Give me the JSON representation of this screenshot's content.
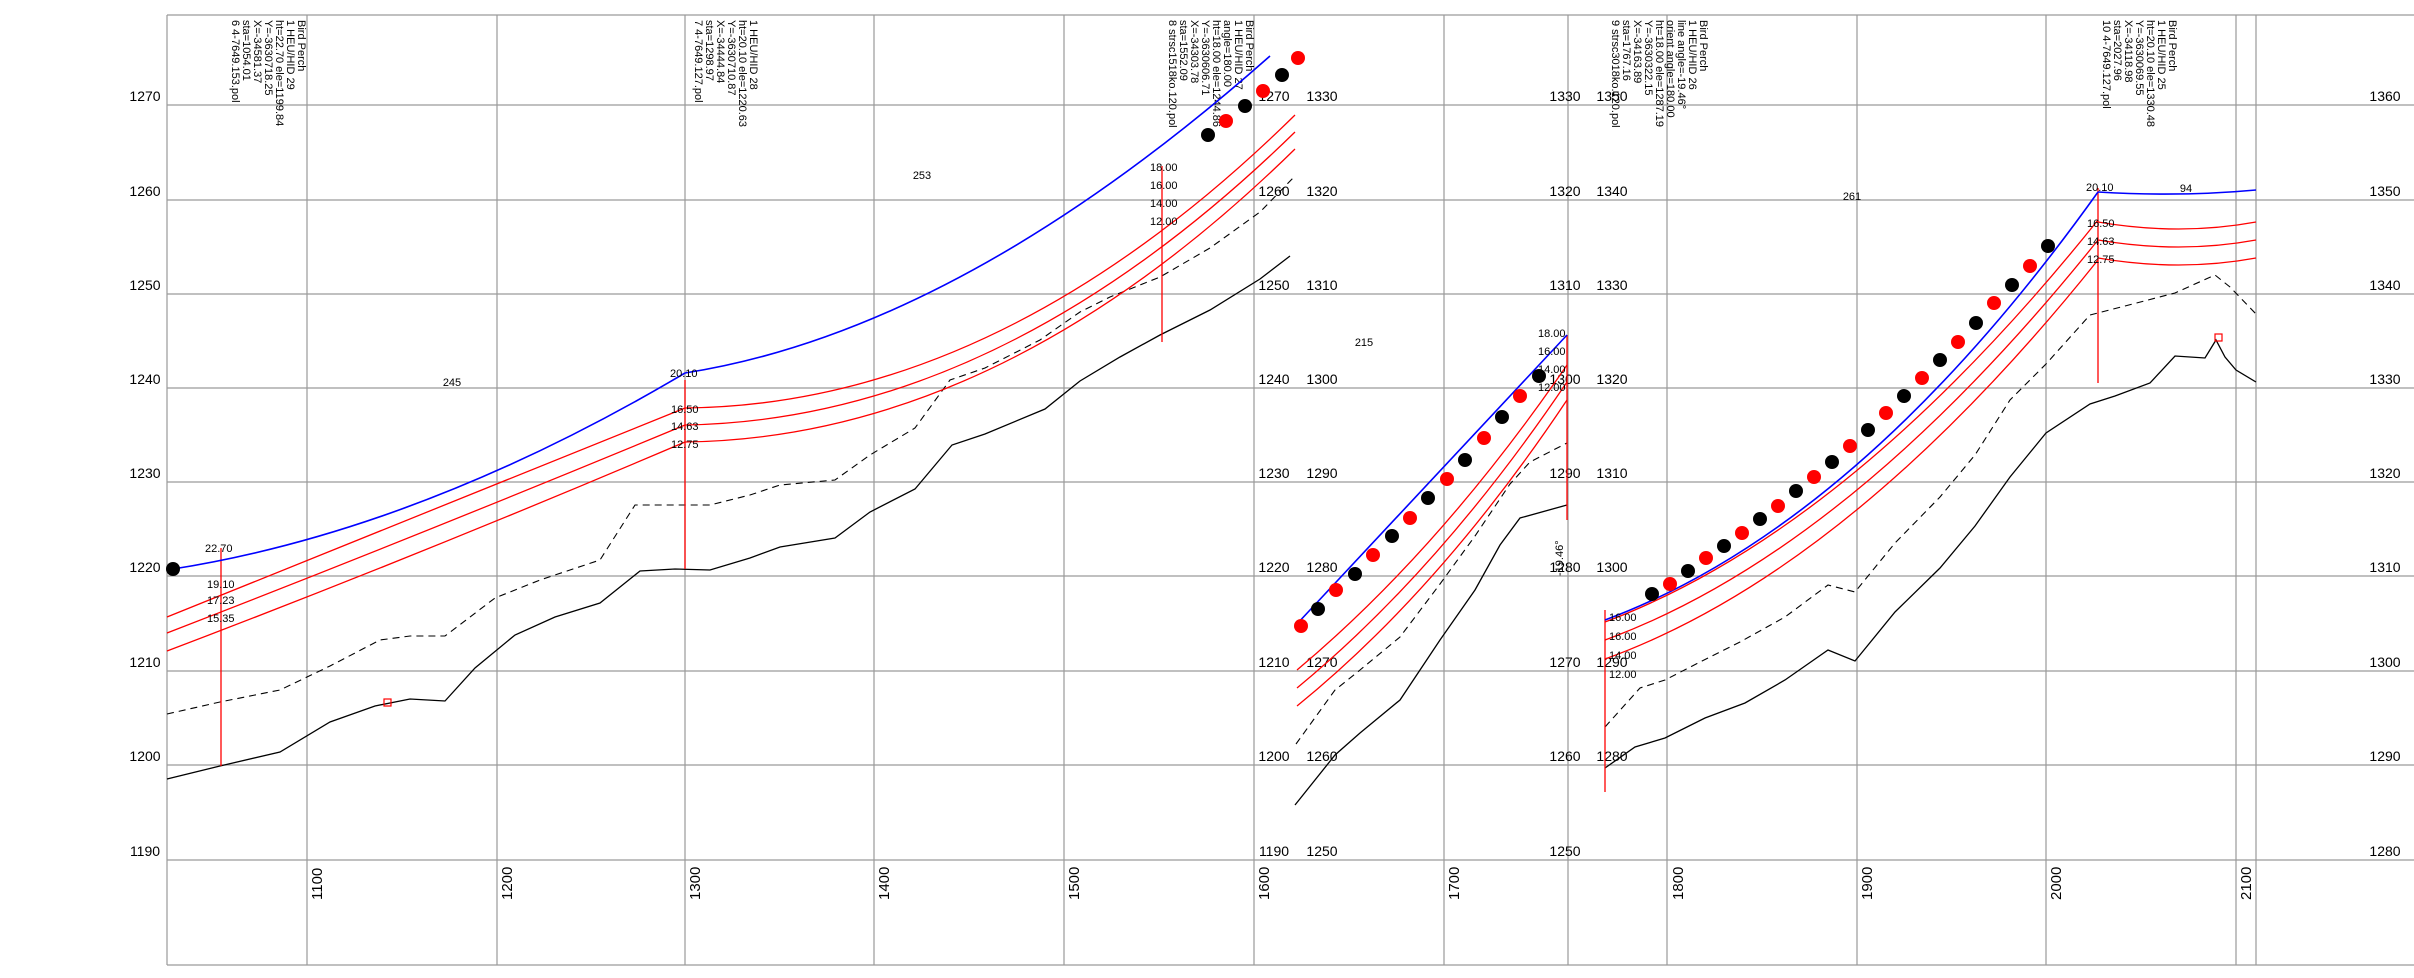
{
  "colors": {
    "grid": "#9a9a9a",
    "conductor": "#0000ff",
    "clearance": "#ff0000",
    "ground": "#000000",
    "buffer": "#000000",
    "marker_red": "#ff0000",
    "marker_black": "#000000"
  },
  "axes": {
    "left_elev_labels": [
      "1270",
      "1260",
      "1250",
      "1240",
      "1230",
      "1220",
      "1210",
      "1200",
      "1190"
    ],
    "right_elev_labels": [
      "1360",
      "1350",
      "1340",
      "1330",
      "1320",
      "1310",
      "1300",
      "1290",
      "1280"
    ],
    "mid1_left_labels": [
      "1270",
      "1260",
      "1250",
      "1240",
      "1230",
      "1220",
      "1210",
      "1200",
      "1190"
    ],
    "mid1_right_labels": [
      "1330",
      "1320",
      "1310",
      "1300",
      "1290",
      "1280",
      "1270",
      "1260",
      "1250"
    ],
    "mid2_left_labels": [
      "1330",
      "1320",
      "1310",
      "1300",
      "1290",
      "1280",
      "1270",
      "1260",
      "1250"
    ],
    "mid2_right_labels": [
      "1350",
      "1340",
      "1330",
      "1320",
      "1310",
      "1300",
      "1290",
      "1280"
    ],
    "station_labels": [
      "1100",
      "1200",
      "1300",
      "1400",
      "1500",
      "1600",
      "1700",
      "1800",
      "1900",
      "2000",
      "2100"
    ]
  },
  "structures": [
    {
      "id": "str6",
      "lines": [
        "6  4-7649.153.pol",
        "sta=1054.01",
        "X=-34581.37",
        "Y=-3630718.25",
        "ht=22.70  ele=1199.84",
        "1 HEU/HID 29",
        "Bird Perch"
      ]
    },
    {
      "id": "str7",
      "lines": [
        "7  4-7649.127.pol",
        "sta=1298.97",
        "X=-34444.84",
        "Y=-3630710.87",
        "ht=20.10  ele=1220.63",
        "1 HEU/HID 28"
      ]
    },
    {
      "id": "str8",
      "lines": [
        "8  strsc1518ko.120.pol",
        "sta=1552.09",
        "X=-34303.78",
        "Y=-3630606.71",
        "ht=18.00  ele=1244.86",
        "angle=180.00",
        "1 HEU/HID 27",
        "Bird Perch"
      ]
    },
    {
      "id": "str9",
      "lines": [
        "9  strsc3018ko.120.pol",
        "sta=1767.16",
        "X=-34163.89",
        "Y=-3630322.15",
        "ht=18.00  ele=1287.19",
        "orient angle=180.00",
        "line angle=-19.46°",
        "1 HEU/HID 26",
        "Bird Perch"
      ]
    },
    {
      "id": "str10",
      "lines": [
        "10  4-7649.127.pol",
        "sta=2027.96",
        "X=-34118.98",
        "Y=-3630069.55",
        "ht=20.10  ele=1330.48",
        "1 HEU/HID 25",
        "Bird Perch"
      ]
    }
  ],
  "span_lengths": [
    "245",
    "253",
    "215",
    "261",
    "94"
  ],
  "attachment_labels": {
    "str6": [
      "22.70",
      "19.10",
      "17.23",
      "15.35"
    ],
    "str7": [
      "20.10",
      "16.50",
      "14.63",
      "12.75"
    ],
    "str8": [
      "18.00",
      "16.00",
      "14.00",
      "12.00"
    ],
    "str9_top": [
      "18.00",
      "16.00",
      "14.00",
      "12.00"
    ],
    "str9_bottom": [
      "16.00",
      "16.00",
      "14.00",
      "12.00"
    ],
    "str10": [
      "20.10",
      "16.50",
      "14.63",
      "12.75"
    ]
  },
  "line_angle_note": "-19.46°"
}
